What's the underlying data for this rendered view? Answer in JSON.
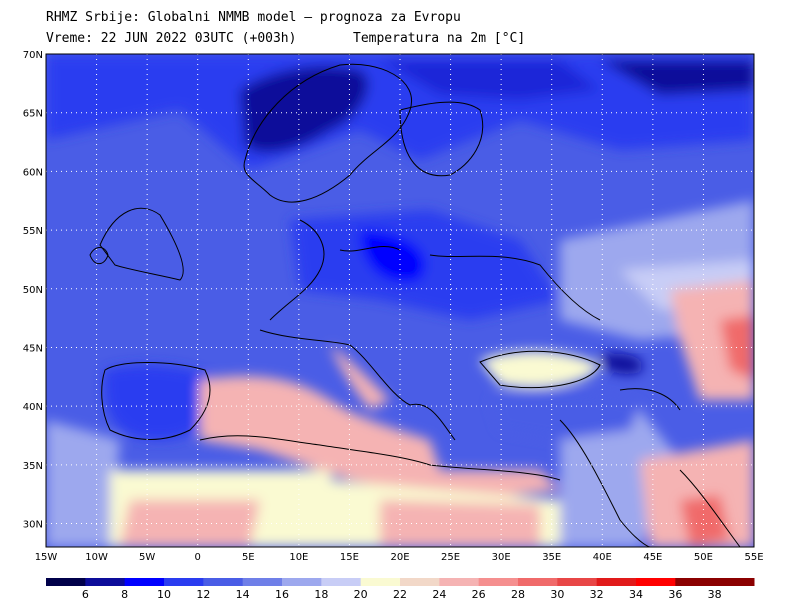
{
  "header": {
    "title": "RHMZ Srbije: Globalni NMMB model — prognoza za Evropu",
    "time": "Vreme: 22 JUN 2022 03UTC (+003h)",
    "field": "Temperatura na 2m [°C]"
  },
  "map": {
    "lon_range": [
      -15,
      55
    ],
    "lat_range": [
      28,
      70
    ],
    "lat_ticks": [
      "70N",
      "65N",
      "60N",
      "55N",
      "50N",
      "45N",
      "40N",
      "35N",
      "30N"
    ],
    "lat_values": [
      70,
      65,
      60,
      55,
      50,
      45,
      40,
      35,
      30
    ],
    "lon_ticks": [
      "15W",
      "10W",
      "5W",
      "0",
      "5E",
      "10E",
      "15E",
      "20E",
      "25E",
      "30E",
      "35E",
      "40E",
      "45E",
      "50E",
      "55E"
    ],
    "lon_values": [
      -15,
      -10,
      -5,
      0,
      5,
      10,
      15,
      20,
      25,
      30,
      35,
      40,
      45,
      50,
      55
    ],
    "grid": "dotted",
    "projection": "lat-lon"
  },
  "colorbar": {
    "labels": [
      "6",
      "8",
      "10",
      "12",
      "14",
      "16",
      "18",
      "20",
      "22",
      "24",
      "26",
      "28",
      "30",
      "32",
      "34",
      "36",
      "38"
    ],
    "colors": [
      "#00004a",
      "#0d0d9a",
      "#0000ff",
      "#2a3cf0",
      "#4a5de6",
      "#6f7fe8",
      "#9da8ee",
      "#c8cdf6",
      "#fafad2",
      "#f2d8c8",
      "#f5b3b3",
      "#f58f8f",
      "#f06a6a",
      "#e84646",
      "#e11a1a",
      "#ff0000",
      "#8b0000"
    ]
  }
}
